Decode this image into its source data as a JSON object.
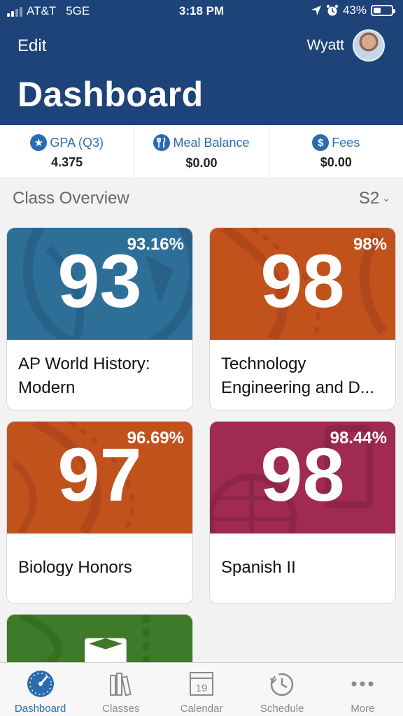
{
  "status_bar": {
    "carrier": "AT&T",
    "network": "5GE",
    "time": "3:18 PM",
    "battery": "43%",
    "battery_level": 0.43
  },
  "header": {
    "edit_label": "Edit",
    "user_name": "Wyatt",
    "title": "Dashboard"
  },
  "summary": [
    {
      "label": "GPA (Q3)",
      "value": "4.375",
      "icon": "star-icon"
    },
    {
      "label": "Meal Balance",
      "value": "$0.00",
      "icon": "utensils-icon"
    },
    {
      "label": "Fees",
      "value": "$0.00",
      "icon": "dollar-icon"
    }
  ],
  "class_overview": {
    "title": "Class Overview",
    "semester": "S2",
    "classes": [
      {
        "grade": "93",
        "percent": "93.16%",
        "name": "AP World History: Modern",
        "color": "#2e6f98"
      },
      {
        "grade": "98",
        "percent": "98%",
        "name": "Technology Engineering and D...",
        "color": "#c2521c"
      },
      {
        "grade": "97",
        "percent": "96.69%",
        "name": "Biology Honors",
        "color": "#c2521c"
      },
      {
        "grade": "98",
        "percent": "98.44%",
        "name": "Spanish II",
        "color": "#a02a52"
      },
      {
        "grade": "",
        "percent": "",
        "name": "",
        "color": "#3f7a2a"
      }
    ]
  },
  "tabbar": [
    {
      "label": "Dashboard",
      "icon": "gauge-icon",
      "active": true
    },
    {
      "label": "Classes",
      "icon": "books-icon",
      "active": false
    },
    {
      "label": "Calendar",
      "icon": "calendar-icon",
      "day": "19",
      "active": false
    },
    {
      "label": "Schedule",
      "icon": "clock-history-icon",
      "active": false
    },
    {
      "label": "More",
      "icon": "ellipsis-icon",
      "active": false
    }
  ]
}
